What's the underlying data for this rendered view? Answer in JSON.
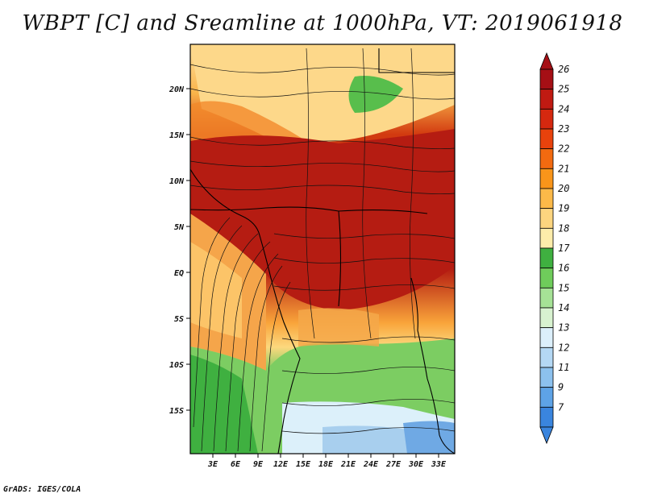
{
  "title": "WBPT [C] and Sreamline at 1000hPa, VT: 2019061918",
  "credit": "GrADS: IGES/COLA",
  "map": {
    "lat_ticks": [
      "20N",
      "15N",
      "10N",
      "5N",
      "EQ",
      "5S",
      "10S",
      "15S"
    ],
    "lon_ticks": [
      "3E",
      "6E",
      "9E",
      "12E",
      "15E",
      "18E",
      "21E",
      "24E",
      "27E",
      "30E",
      "33E"
    ]
  },
  "colorbar": {
    "levels": [
      "26",
      "25",
      "24",
      "23",
      "22",
      "21",
      "20",
      "19",
      "18",
      "17",
      "16",
      "15",
      "14",
      "13",
      "12",
      "11",
      "9",
      "7"
    ],
    "colors": [
      "#a50f15",
      "#c01a12",
      "#d5280f",
      "#e8420c",
      "#f26a10",
      "#f9951a",
      "#fcb949",
      "#fdd57f",
      "#fdecaa",
      "#3fb040",
      "#6fcc5b",
      "#a6e296",
      "#d8f2d0",
      "#dceffb",
      "#b4d8f4",
      "#8cc1ee",
      "#5ea3e6",
      "#3a85de"
    ]
  }
}
